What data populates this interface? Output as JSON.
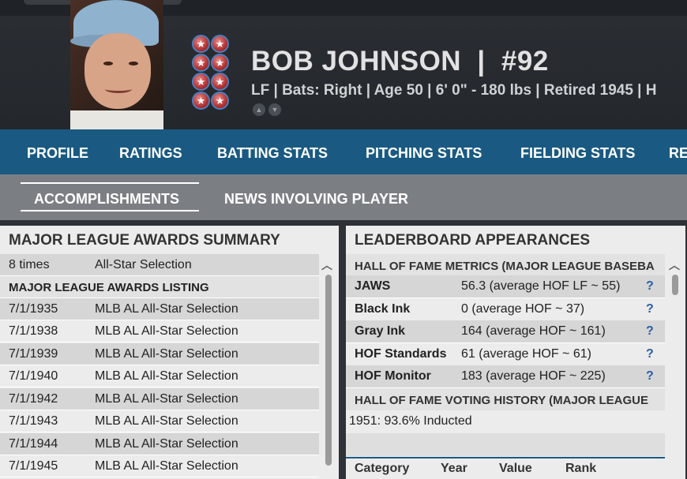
{
  "player": {
    "name": "BOB JOHNSON",
    "separator": "|",
    "number": "#92",
    "meta": "LF | Bats: Right  |  Age 50  |  6' 0\"  - 180 lbs  |  Retired 1945  |  H"
  },
  "icons": {
    "medal": "star-medal-icon",
    "prev": "chevron-up-icon",
    "next": "chevron-down-icon"
  },
  "main_nav": [
    "PROFILE",
    "RATINGS",
    "BATTING STATS",
    "PITCHING STATS",
    "FIELDING STATS",
    "RE"
  ],
  "sub_nav": [
    "ACCOMPLISHMENTS",
    "NEWS INVOLVING PLAYER"
  ],
  "awards": {
    "title": "MAJOR LEAGUE AWARDS SUMMARY",
    "summary": {
      "count": "8 times",
      "award": "All-Star Selection"
    },
    "listing_header": "MAJOR LEAGUE AWARDS LISTING",
    "listing": [
      {
        "date": "7/1/1935",
        "award": "MLB AL All-Star Selection"
      },
      {
        "date": "7/1/1938",
        "award": "MLB AL All-Star Selection"
      },
      {
        "date": "7/1/1939",
        "award": "MLB AL All-Star Selection"
      },
      {
        "date": "7/1/1940",
        "award": "MLB AL All-Star Selection"
      },
      {
        "date": "7/1/1942",
        "award": "MLB AL All-Star Selection"
      },
      {
        "date": "7/1/1943",
        "award": "MLB AL All-Star Selection"
      },
      {
        "date": "7/1/1944",
        "award": "MLB AL All-Star Selection"
      },
      {
        "date": "7/1/1945",
        "award": "MLB AL All-Star Selection"
      }
    ]
  },
  "leaderboard": {
    "title": "LEADERBOARD APPEARANCES",
    "hof_header": "HALL OF FAME METRICS (MAJOR LEAGUE BASEBA",
    "metrics": [
      {
        "name": "JAWS",
        "value": "56.3 (average HOF LF ~ 55)",
        "help": "?"
      },
      {
        "name": "Black Ink",
        "value": "0 (average HOF ~ 37)",
        "help": "?"
      },
      {
        "name": "Gray Ink",
        "value": "164 (average HOF ~ 161)",
        "help": "?"
      },
      {
        "name": "HOF Standards",
        "value": "61 (average HOF ~ 61)",
        "help": "?"
      },
      {
        "name": "HOF Monitor",
        "value": "183 (average HOF ~ 225)",
        "help": "?"
      }
    ],
    "voting_header": "HALL OF FAME VOTING HISTORY (MAJOR LEAGUE",
    "voting": [
      "1951: 93.6% Inducted"
    ],
    "table_headers": [
      "Category",
      "Year",
      "Value",
      "Rank"
    ]
  },
  "colors": {
    "nav_blue": "#1a5a82",
    "subnav_gray": "#7b7f84",
    "panel_bg": "#ececec",
    "help_blue": "#2a5fa8"
  }
}
